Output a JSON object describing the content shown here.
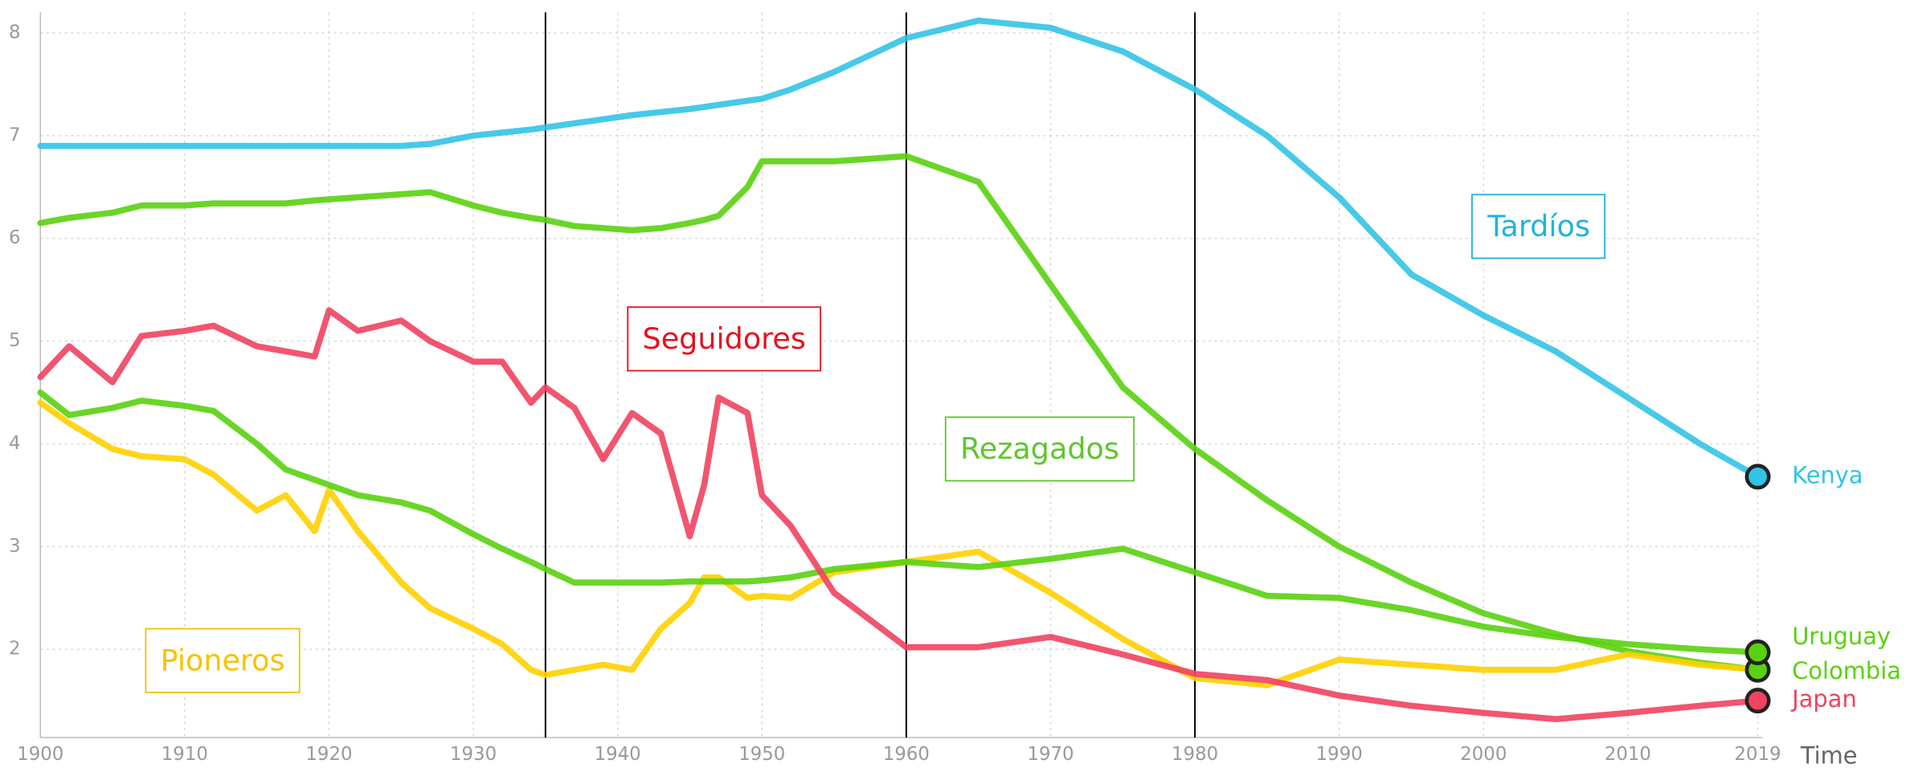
{
  "chart_data": {
    "type": "line",
    "x_label": "Time",
    "x": [
      1900,
      1902,
      1905,
      1907,
      1910,
      1912,
      1915,
      1917,
      1919,
      1920,
      1922,
      1925,
      1927,
      1930,
      1932,
      1934,
      1935,
      1937,
      1939,
      1941,
      1943,
      1945,
      1946,
      1947,
      1949,
      1950,
      1952,
      1955,
      1960,
      1965,
      1970,
      1975,
      1980,
      1985,
      1990,
      1995,
      2000,
      2005,
      2010,
      2015,
      2019
    ],
    "series": [
      {
        "name": "Kenya",
        "color": "#33c3e6",
        "values": [
          6.9,
          6.9,
          6.9,
          6.9,
          6.9,
          6.9,
          6.9,
          6.9,
          6.9,
          6.9,
          6.9,
          6.9,
          6.92,
          7.0,
          7.03,
          7.06,
          7.08,
          7.12,
          7.16,
          7.2,
          7.23,
          7.26,
          7.28,
          7.3,
          7.34,
          7.36,
          7.45,
          7.62,
          7.95,
          8.12,
          8.05,
          7.82,
          7.45,
          7.0,
          6.4,
          5.65,
          5.25,
          4.9,
          4.45,
          4.0,
          3.68
        ]
      },
      {
        "name": "Colombia",
        "color": "#59d10f",
        "values": [
          6.15,
          6.2,
          6.25,
          6.32,
          6.32,
          6.34,
          6.34,
          6.34,
          6.37,
          6.38,
          6.4,
          6.43,
          6.45,
          6.32,
          6.25,
          6.2,
          6.18,
          6.12,
          6.1,
          6.08,
          6.1,
          6.15,
          6.18,
          6.22,
          6.5,
          6.75,
          6.75,
          6.75,
          6.8,
          6.55,
          5.55,
          4.55,
          3.95,
          3.45,
          3.0,
          2.65,
          2.35,
          2.15,
          1.98,
          1.87,
          1.8
        ]
      },
      {
        "color": "#ffd000",
        "values": [
          4.4,
          4.2,
          3.95,
          3.88,
          3.85,
          3.7,
          3.35,
          3.5,
          3.15,
          3.55,
          3.15,
          2.65,
          2.4,
          2.2,
          2.05,
          1.8,
          1.75,
          1.8,
          1.85,
          1.8,
          2.2,
          2.45,
          2.7,
          2.7,
          2.5,
          2.52,
          2.5,
          2.75,
          2.85,
          2.95,
          2.55,
          2.1,
          1.72,
          1.65,
          1.9,
          1.85,
          1.8,
          1.8,
          1.95,
          1.85,
          1.8
        ]
      },
      {
        "name": "Uruguay",
        "color": "#59d10f",
        "values": [
          4.5,
          4.28,
          4.35,
          4.42,
          4.37,
          4.32,
          4.0,
          3.75,
          3.65,
          3.6,
          3.5,
          3.43,
          3.35,
          3.12,
          2.98,
          2.85,
          2.78,
          2.65,
          2.65,
          2.65,
          2.65,
          2.66,
          2.66,
          2.66,
          2.66,
          2.67,
          2.7,
          2.78,
          2.85,
          2.8,
          2.88,
          2.98,
          2.75,
          2.52,
          2.5,
          2.38,
          2.22,
          2.12,
          2.05,
          2.0,
          1.97
        ]
      },
      {
        "name": "Japan",
        "color": "#f0435f",
        "values": [
          4.65,
          4.95,
          4.6,
          5.05,
          5.1,
          5.15,
          4.95,
          4.9,
          4.85,
          5.3,
          5.1,
          5.2,
          5.0,
          4.8,
          4.8,
          4.4,
          4.55,
          4.35,
          3.85,
          4.3,
          4.1,
          3.1,
          3.6,
          4.45,
          4.3,
          3.5,
          3.2,
          2.55,
          2.02,
          2.02,
          2.12,
          1.95,
          1.76,
          1.7,
          1.55,
          1.45,
          1.38,
          1.32,
          1.38,
          1.45,
          1.5
        ]
      }
    ],
    "xlim": [
      1900,
      2019
    ],
    "ylim": [
      1.14,
      8.2
    ],
    "xticks": [
      1900,
      1910,
      1920,
      1930,
      1940,
      1950,
      1960,
      1970,
      1980,
      1990,
      2000,
      2010,
      2019
    ],
    "yticks": [
      2,
      3,
      4,
      5,
      6,
      7,
      8
    ],
    "grid": true,
    "vlines": [
      1935,
      1960,
      1980
    ],
    "annotations": [
      {
        "text": "Tardíos",
        "color": "#1fb3dd"
      },
      {
        "text": "Seguidores",
        "color": "#e8101e"
      },
      {
        "text": "Rezagados",
        "color": "#5ec62c"
      },
      {
        "text": "Pioneros",
        "color": "#f5c400"
      }
    ]
  }
}
